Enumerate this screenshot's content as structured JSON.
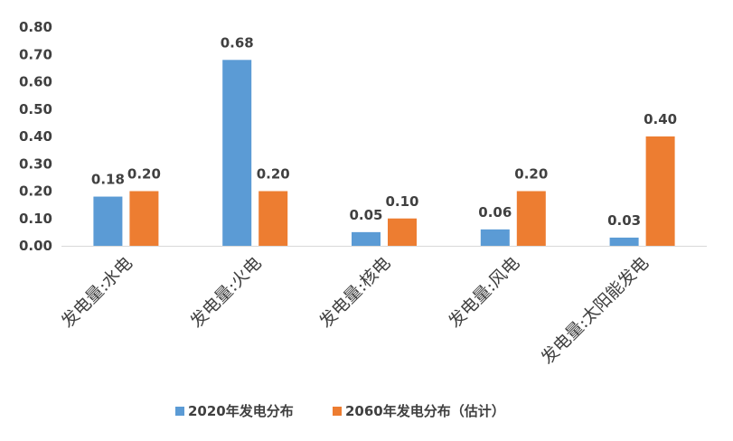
{
  "chart_data": {
    "type": "bar",
    "title": "",
    "xlabel": "",
    "ylabel": "",
    "categories": [
      "发电量:水电",
      "发电量:火电",
      "发电量:核电",
      "发电量:风电",
      "发电量:太阳能发电"
    ],
    "series": [
      {
        "name": "2020年发电分布",
        "values": [
          0.18,
          0.68,
          0.05,
          0.06,
          0.03
        ],
        "color": "#5B9BD5"
      },
      {
        "name": "2060年发电分布（估计）",
        "values": [
          0.2,
          0.2,
          0.1,
          0.2,
          0.4
        ],
        "color": "#ED7D31"
      }
    ],
    "ylim": [
      0,
      0.8
    ],
    "yticks": [
      "0.00",
      "0.10",
      "0.20",
      "0.30",
      "0.40",
      "0.50",
      "0.60",
      "0.70",
      "0.80"
    ],
    "data_labels": [
      [
        "0.18",
        "0.68",
        "0.05",
        "0.06",
        "0.03"
      ],
      [
        "0.20",
        "0.20",
        "0.10",
        "0.20",
        "0.40"
      ]
    ],
    "grid": false,
    "legend_position": "bottom"
  }
}
